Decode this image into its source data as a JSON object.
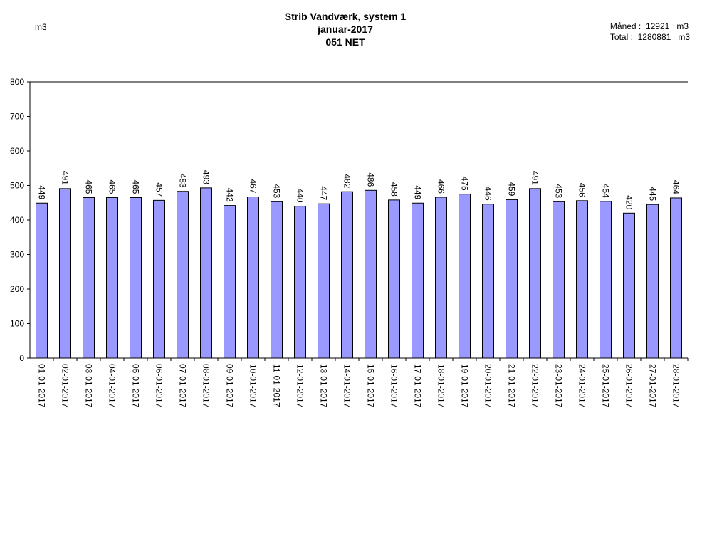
{
  "header": {
    "title_line1": "Strib Vandværk, system 1",
    "title_line2": "januar-2017",
    "title_line3": "051 NET",
    "unit_left": "m3",
    "month_label": "Måned :",
    "month_value": "12921",
    "month_unit": "m3",
    "total_label": "Total :",
    "total_value": "1280881",
    "total_unit": "m3"
  },
  "chart_data": {
    "type": "bar",
    "title": "Strib Vandværk, system 1",
    "ylabel": "m3",
    "xlabel": "",
    "ylim": [
      0,
      800
    ],
    "yticks": [
      0,
      100,
      200,
      300,
      400,
      500,
      600,
      700,
      800
    ],
    "bar_color": "#9999ff",
    "categories": [
      "01-01-2017",
      "02-01-2017",
      "03-01-2017",
      "04-01-2017",
      "05-01-2017",
      "06-01-2017",
      "07-01-2017",
      "08-01-2017",
      "09-01-2017",
      "10-01-2017",
      "11-01-2017",
      "12-01-2017",
      "13-01-2017",
      "14-01-2017",
      "15-01-2017",
      "16-01-2017",
      "17-01-2017",
      "18-01-2017",
      "19-01-2017",
      "20-01-2017",
      "21-01-2017",
      "22-01-2017",
      "23-01-2017",
      "24-01-2017",
      "25-01-2017",
      "26-01-2017",
      "27-01-2017",
      "28-01-2017"
    ],
    "values": [
      449,
      491,
      465,
      465,
      465,
      457,
      483,
      493,
      442,
      467,
      453,
      440,
      447,
      482,
      486,
      458,
      449,
      466,
      475,
      446,
      459,
      491,
      453,
      456,
      454,
      420,
      445,
      464
    ]
  }
}
